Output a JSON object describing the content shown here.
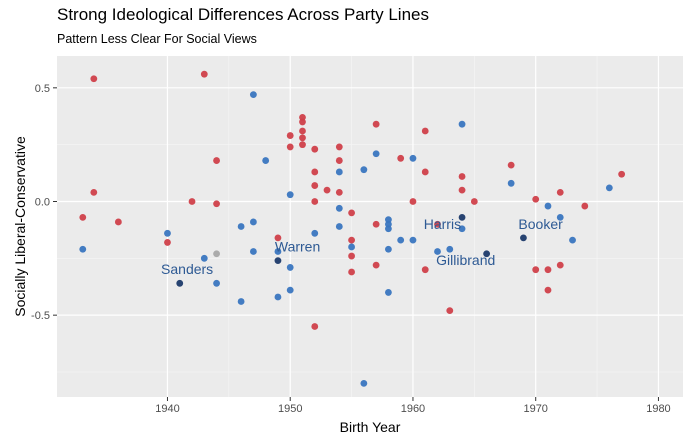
{
  "chart_data": {
    "type": "scatter",
    "title": "Strong Ideological Differences Across Party Lines",
    "subtitle": "Pattern Less Clear For Social Views",
    "xlabel": "Birth Year",
    "ylabel": "Socially Liberal-Conservative",
    "xlim": [
      1931,
      1982
    ],
    "ylim": [
      -0.86,
      0.64
    ],
    "xticks": [
      1940,
      1950,
      1960,
      1970,
      1980
    ],
    "yticks": [
      -0.5,
      0.0,
      0.5
    ],
    "ytick_labels": [
      "-0.5",
      "0.0",
      "0.5"
    ],
    "grid": true,
    "colors": {
      "republican": "#d0404a",
      "democrat": "#3a76c0",
      "highlighted": "#1c3a6a",
      "independent": "#a8a8a8",
      "label_text": "#2e5a94",
      "panel_bg": "#ebebeb"
    },
    "series": [
      {
        "key": "republican",
        "points": [
          [
            1933.1,
            -0.07
          ],
          [
            1934.0,
            0.54
          ],
          [
            1934.0,
            0.04
          ],
          [
            1936.0,
            -0.09
          ],
          [
            1940.0,
            -0.18
          ],
          [
            1942.0,
            0.0
          ],
          [
            1943.0,
            0.56
          ],
          [
            1944.0,
            0.18
          ],
          [
            1944.0,
            -0.01
          ],
          [
            1949.0,
            -0.16
          ],
          [
            1950.0,
            0.29
          ],
          [
            1950.0,
            0.24
          ],
          [
            1951.0,
            0.37
          ],
          [
            1951.0,
            0.35
          ],
          [
            1951.0,
            0.31
          ],
          [
            1951.0,
            0.28
          ],
          [
            1951.0,
            0.25
          ],
          [
            1952.0,
            0.23
          ],
          [
            1952.0,
            0.13
          ],
          [
            1952.0,
            0.07
          ],
          [
            1952.0,
            0.0
          ],
          [
            1952.0,
            -0.55
          ],
          [
            1953.0,
            0.05
          ],
          [
            1954.0,
            0.24
          ],
          [
            1954.0,
            0.18
          ],
          [
            1954.0,
            0.04
          ],
          [
            1955.0,
            -0.05
          ],
          [
            1955.0,
            -0.17
          ],
          [
            1955.0,
            -0.24
          ],
          [
            1955.0,
            -0.31
          ],
          [
            1957.0,
            0.34
          ],
          [
            1957.0,
            -0.1
          ],
          [
            1957.0,
            -0.28
          ],
          [
            1959.0,
            0.19
          ],
          [
            1960.0,
            0.0
          ],
          [
            1961.0,
            0.31
          ],
          [
            1961.0,
            0.13
          ],
          [
            1961.0,
            -0.3
          ],
          [
            1962.0,
            -0.1
          ],
          [
            1963.0,
            -0.48
          ],
          [
            1964.0,
            0.11
          ],
          [
            1964.0,
            0.05
          ],
          [
            1965.0,
            0.0
          ],
          [
            1968.0,
            0.16
          ],
          [
            1970.0,
            0.01
          ],
          [
            1970.0,
            -0.3
          ],
          [
            1971.0,
            -0.3
          ],
          [
            1971.0,
            -0.39
          ],
          [
            1972.0,
            0.04
          ],
          [
            1972.0,
            -0.28
          ],
          [
            1974.0,
            -0.02
          ],
          [
            1977.0,
            0.12
          ]
        ]
      },
      {
        "key": "democrat",
        "points": [
          [
            1933.1,
            -0.21
          ],
          [
            1940.0,
            -0.14
          ],
          [
            1943.0,
            -0.25
          ],
          [
            1944.0,
            -0.36
          ],
          [
            1946.0,
            -0.11
          ],
          [
            1946.0,
            -0.44
          ],
          [
            1947.0,
            0.47
          ],
          [
            1947.0,
            -0.09
          ],
          [
            1947.0,
            -0.22
          ],
          [
            1948.0,
            0.18
          ],
          [
            1949.0,
            -0.22
          ],
          [
            1949.0,
            -0.42
          ],
          [
            1950.0,
            0.03
          ],
          [
            1950.0,
            -0.29
          ],
          [
            1950.0,
            -0.39
          ],
          [
            1952.0,
            -0.14
          ],
          [
            1954.0,
            0.13
          ],
          [
            1954.0,
            -0.03
          ],
          [
            1954.0,
            -0.11
          ],
          [
            1955.0,
            -0.2
          ],
          [
            1956.0,
            0.14
          ],
          [
            1956.0,
            -0.8
          ],
          [
            1957.0,
            0.21
          ],
          [
            1958.0,
            -0.08
          ],
          [
            1958.0,
            -0.1
          ],
          [
            1958.0,
            -0.12
          ],
          [
            1958.0,
            -0.21
          ],
          [
            1958.0,
            -0.4
          ],
          [
            1959.0,
            -0.17
          ],
          [
            1960.0,
            0.19
          ],
          [
            1960.0,
            -0.17
          ],
          [
            1962.0,
            -0.22
          ],
          [
            1963.0,
            -0.21
          ],
          [
            1964.0,
            0.34
          ],
          [
            1964.0,
            -0.12
          ],
          [
            1968.0,
            0.08
          ],
          [
            1971.0,
            -0.02
          ],
          [
            1972.0,
            -0.07
          ],
          [
            1973.0,
            -0.17
          ],
          [
            1976.0,
            0.06
          ]
        ]
      },
      {
        "key": "highlighted",
        "points": [
          [
            1941.0,
            -0.36
          ],
          [
            1949.0,
            -0.26
          ],
          [
            1964.0,
            -0.07
          ],
          [
            1966.0,
            -0.23
          ],
          [
            1969.0,
            -0.16
          ]
        ]
      },
      {
        "key": "independent",
        "points": [
          [
            1944.0,
            -0.23
          ]
        ]
      }
    ],
    "annotations": [
      {
        "text": "Sanders",
        "x": 1941.6,
        "y": -0.32
      },
      {
        "text": "Warren",
        "x": 1950.6,
        "y": -0.22
      },
      {
        "text": "Harris",
        "x": 1962.4,
        "y": -0.12
      },
      {
        "text": "Gillibrand",
        "x": 1964.3,
        "y": -0.28
      },
      {
        "text": "Booker",
        "x": 1970.4,
        "y": -0.12
      }
    ]
  }
}
